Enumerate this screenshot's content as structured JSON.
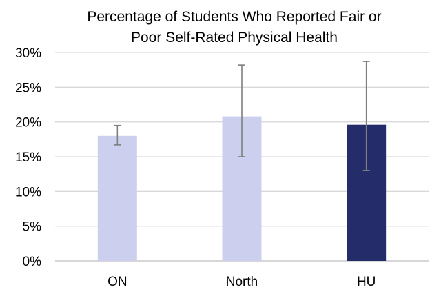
{
  "chart_data": {
    "type": "bar",
    "title": [
      "Percentage of Students Who Reported Fair or",
      "Poor Self-Rated Physical Health"
    ],
    "xlabel": "",
    "ylabel": "",
    "categories": [
      "ON",
      "North",
      "HU"
    ],
    "values": [
      18,
      20.8,
      19.6
    ],
    "error_low": [
      16.7,
      15.0,
      13.0
    ],
    "error_high": [
      19.5,
      28.2,
      28.7
    ],
    "bar_colors": [
      "#cccfed",
      "#cccfed",
      "#242c6a"
    ],
    "error_bar_color": "#7f7f7f",
    "gridline_color": "#d9d9d9",
    "ylim": [
      0,
      30
    ],
    "yticks": [
      0,
      5,
      10,
      15,
      20,
      25,
      30
    ],
    "ytick_labels": [
      "0%",
      "5%",
      "10%",
      "15%",
      "20%",
      "25%",
      "30%"
    ],
    "grid": true,
    "legend": "none"
  }
}
